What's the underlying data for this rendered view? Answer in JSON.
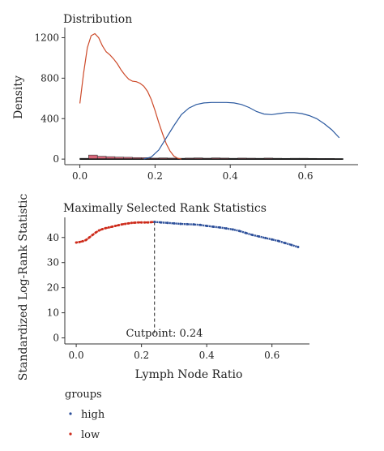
{
  "charts": [
    {
      "chart_data": {
        "type": "area",
        "title": "Distribution",
        "ylabel": "Density",
        "xlabel": "",
        "xlim": [
          0,
          0.7
        ],
        "ylim": [
          0,
          1300
        ],
        "x_ticks": [
          0.0,
          0.2,
          0.4,
          0.6
        ],
        "x_tick_labels": [
          "0.0",
          "0.2",
          "0.4",
          "0.6"
        ],
        "y_ticks": [
          0,
          400,
          800,
          1200
        ],
        "y_tick_labels": [
          "0",
          "400",
          "800",
          "1200"
        ],
        "grid": false,
        "series": [
          {
            "group": "low",
            "color": "#cd4a2a",
            "x": [
              0.0,
              0.01,
              0.02,
              0.03,
              0.04,
              0.05,
              0.06,
              0.07,
              0.08,
              0.09,
              0.1,
              0.11,
              0.12,
              0.13,
              0.14,
              0.15,
              0.16,
              0.17,
              0.18,
              0.19,
              0.2,
              0.21,
              0.22,
              0.23,
              0.24,
              0.25,
              0.26,
              0.27
            ],
            "y": [
              550,
              850,
              1100,
              1220,
              1240,
              1200,
              1120,
              1060,
              1030,
              990,
              940,
              880,
              830,
              790,
              770,
              765,
              750,
              720,
              670,
              590,
              480,
              360,
              250,
              150,
              80,
              30,
              8,
              0
            ]
          },
          {
            "group": "high",
            "color": "#2c5aa0",
            "x": [
              0.17,
              0.19,
              0.21,
              0.23,
              0.25,
              0.27,
              0.29,
              0.31,
              0.33,
              0.35,
              0.37,
              0.39,
              0.41,
              0.43,
              0.45,
              0.47,
              0.49,
              0.51,
              0.53,
              0.55,
              0.57,
              0.59,
              0.61,
              0.63,
              0.65,
              0.67,
              0.69
            ],
            "y": [
              0,
              20,
              90,
              210,
              330,
              440,
              505,
              540,
              555,
              560,
              560,
              560,
              555,
              540,
              510,
              470,
              445,
              440,
              450,
              460,
              460,
              450,
              430,
              400,
              350,
              290,
              210
            ]
          }
        ],
        "histogram": {
          "bins": [
            0.0,
            0.0233,
            0.0467,
            0.07,
            0.0933,
            0.1167,
            0.14,
            0.1633,
            0.1867,
            0.21,
            0.2333,
            0.2567,
            0.28,
            0.3033,
            0.3267,
            0.35,
            0.3733,
            0.3967,
            0.42,
            0.4433,
            0.4667,
            0.49,
            0.5133,
            0.5367,
            0.56,
            0.5833,
            0.6067,
            0.63,
            0.6533,
            0.6767,
            0.7
          ],
          "counts": [
            8,
            40,
            28,
            24,
            20,
            18,
            15,
            14,
            10,
            12,
            10,
            8,
            10,
            12,
            9,
            12,
            10,
            8,
            10,
            9,
            8,
            10,
            8,
            7,
            8,
            8,
            7,
            6,
            6,
            5
          ],
          "fill": "#d9677a"
        }
      }
    },
    {
      "chart_data": {
        "type": "scatter",
        "title": "Maximally Selected Rank Statistics",
        "xlabel": "Lymph Node Ratio",
        "ylabel": "Standardized Log-Rank Statistic",
        "xlim": [
          0,
          0.72
        ],
        "ylim": [
          0,
          48
        ],
        "x_ticks": [
          0.0,
          0.2,
          0.4,
          0.6
        ],
        "x_tick_labels": [
          "0.0",
          "0.2",
          "0.4",
          "0.6"
        ],
        "y_ticks": [
          0,
          10,
          20,
          30,
          40
        ],
        "y_tick_labels": [
          "0",
          "10",
          "20",
          "30",
          "40"
        ],
        "grid": false,
        "cutpoint": {
          "x": 0.24,
          "label": "Cutpoint: 0.24"
        },
        "series": [
          {
            "group": "low",
            "color": "#cd2a1a",
            "x": [
              0.0,
              0.01,
              0.02,
              0.03,
              0.04,
              0.05,
              0.06,
              0.07,
              0.08,
              0.09,
              0.1,
              0.11,
              0.12,
              0.13,
              0.14,
              0.15,
              0.16,
              0.17,
              0.18,
              0.19,
              0.2,
              0.21,
              0.22,
              0.23,
              0.24
            ],
            "y": [
              38.0,
              38.2,
              38.5,
              39.0,
              40.0,
              41.0,
              42.0,
              42.8,
              43.3,
              43.7,
              44.0,
              44.3,
              44.6,
              44.9,
              45.2,
              45.4,
              45.6,
              45.8,
              45.9,
              46.0,
              46.0,
              46.0,
              46.0,
              46.1,
              46.2
            ]
          },
          {
            "group": "high",
            "color": "#2c4f9a",
            "x": [
              0.24,
              0.26,
              0.28,
              0.3,
              0.32,
              0.34,
              0.36,
              0.38,
              0.4,
              0.42,
              0.44,
              0.46,
              0.48,
              0.5,
              0.52,
              0.54,
              0.56,
              0.58,
              0.6,
              0.62,
              0.64,
              0.66,
              0.68
            ],
            "y": [
              46.2,
              46.0,
              45.8,
              45.6,
              45.4,
              45.3,
              45.2,
              45.0,
              44.6,
              44.3,
              44.0,
              43.6,
              43.2,
              42.6,
              41.8,
              41.0,
              40.4,
              39.8,
              39.2,
              38.6,
              37.8,
              37.0,
              36.2
            ]
          }
        ]
      }
    }
  ],
  "legend": {
    "title": "groups",
    "items": [
      {
        "label": "high",
        "color": "#2c4f9a"
      },
      {
        "label": "low",
        "color": "#cd2a1a"
      }
    ]
  }
}
